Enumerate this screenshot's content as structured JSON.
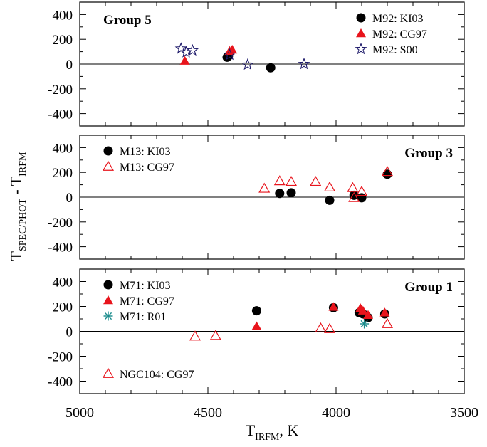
{
  "colors": {
    "black": "#000000",
    "red": "#e8141c",
    "navy": "#1f1b6b",
    "teal": "#1a8c8c"
  },
  "chart_data": [
    {
      "type": "scatter",
      "panel_label": "Group 5",
      "xlim": [
        5000,
        3500
      ],
      "ylim": [
        -500,
        500
      ],
      "y_ticks": [
        400,
        200,
        0,
        -200,
        -400
      ],
      "legend_position": "top-right",
      "series": [
        {
          "name": "M92: KI03",
          "marker": "circle",
          "color": "black",
          "points": [
            [
              4425,
              55
            ],
            [
              4420,
              65
            ],
            [
              4255,
              -30
            ]
          ]
        },
        {
          "name": "M92: CG97",
          "marker": "triangle",
          "color": "red",
          "points": [
            [
              4590,
              25
            ],
            [
              4415,
              105
            ],
            [
              4405,
              115
            ]
          ]
        },
        {
          "name": "M92: S00",
          "marker": "star",
          "color": "navy",
          "points": [
            [
              4605,
              125
            ],
            [
              4585,
              95
            ],
            [
              4560,
              110
            ],
            [
              4415,
              75
            ],
            [
              4345,
              -5
            ],
            [
              4125,
              0
            ]
          ]
        }
      ]
    },
    {
      "type": "scatter",
      "panel_label": "Group 3",
      "xlim": [
        5000,
        3500
      ],
      "ylim": [
        -500,
        500
      ],
      "y_ticks": [
        400,
        200,
        0,
        -200,
        -400
      ],
      "legend_position": "top-left",
      "series": [
        {
          "name": "M13: KI03",
          "marker": "circle",
          "color": "black",
          "points": [
            [
              4220,
              30
            ],
            [
              4175,
              35
            ],
            [
              4025,
              -25
            ],
            [
              3930,
              15
            ],
            [
              3900,
              -5
            ],
            [
              3800,
              185
            ]
          ]
        },
        {
          "name": "M13: CG97",
          "marker": "triangle-open",
          "color": "red",
          "points": [
            [
              4280,
              70
            ],
            [
              4220,
              130
            ],
            [
              4175,
              125
            ],
            [
              4080,
              125
            ],
            [
              4025,
              80
            ],
            [
              3935,
              75
            ],
            [
              3930,
              -5
            ],
            [
              3900,
              45
            ],
            [
              3800,
              205
            ]
          ]
        }
      ]
    },
    {
      "type": "scatter",
      "panel_label": "Group 1",
      "xlim": [
        5000,
        3500
      ],
      "ylim": [
        -500,
        500
      ],
      "y_ticks": [
        400,
        200,
        0,
        -200,
        -400
      ],
      "legend_position": "top-left",
      "series": [
        {
          "name": "M71: KI03",
          "marker": "circle",
          "color": "black",
          "points": [
            [
              4310,
              165
            ],
            [
              4010,
              190
            ],
            [
              3910,
              150
            ],
            [
              3895,
              140
            ],
            [
              3875,
              110
            ],
            [
              3810,
              140
            ]
          ]
        },
        {
          "name": "M71: CG97",
          "marker": "triangle",
          "color": "red",
          "points": [
            [
              4310,
              40
            ],
            [
              4010,
              195
            ],
            [
              3905,
              185
            ],
            [
              3895,
              165
            ],
            [
              3875,
              130
            ],
            [
              3810,
              150
            ]
          ]
        },
        {
          "name": "M71: R01",
          "marker": "asterisk",
          "color": "teal",
          "points": [
            [
              3890,
              60
            ]
          ]
        },
        {
          "name": "NGC104: CG97",
          "marker": "triangle-open",
          "color": "red",
          "legend_position": "bottom-left",
          "points": [
            [
              4550,
              -40
            ],
            [
              4470,
              -35
            ],
            [
              4060,
              25
            ],
            [
              4025,
              20
            ],
            [
              3800,
              60
            ]
          ]
        }
      ]
    }
  ],
  "axes": {
    "x_ticks": [
      5000,
      4500,
      4000,
      3500
    ],
    "x_tick_labels": [
      "5000",
      "4500",
      "4000",
      "3500"
    ],
    "xlabel": {
      "main": "T",
      "sub": "IRFM",
      "rest": ", K"
    },
    "ylabel": {
      "t1": "T",
      "sub1": "SPEC/PHOT",
      "mid": " - T",
      "t2": "",
      "sub2": "IRFM"
    }
  }
}
